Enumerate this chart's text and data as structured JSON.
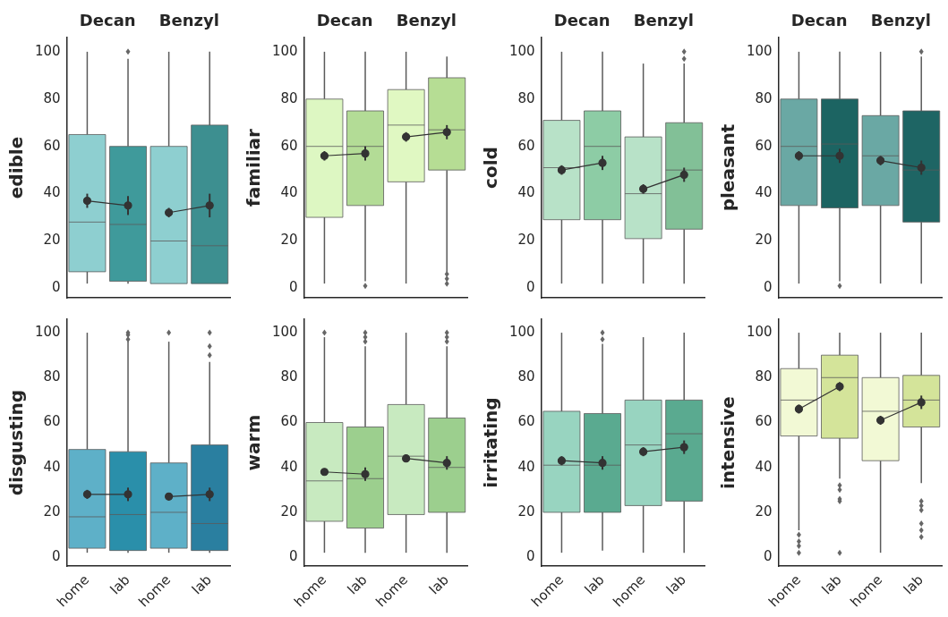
{
  "chart_data": [
    {
      "type": "box",
      "ylabel": "edible",
      "categories": [
        null,
        null,
        null,
        null
      ],
      "annotations": [
        "Decan",
        "Benzyl"
      ],
      "ylim": [
        -4,
        106
      ],
      "yticks": [
        0,
        20,
        40,
        60,
        80,
        100
      ],
      "tick_labels": "y",
      "series": [
        {
          "type": "box",
          "colors": [
            "#8ecfd0",
            "#3f9a9b",
            "#8ecfd0",
            "#3d8f90"
          ],
          "boxes": [
            {
              "low": 2,
              "q1": 7,
              "median": 28,
              "q3": 65,
              "high": 100
            },
            {
              "low": 2,
              "q1": 3,
              "median": 27,
              "q3": 60,
              "high": 97,
              "outliers": [
                100
              ]
            },
            {
              "low": 2,
              "q1": 2,
              "median": 20,
              "q3": 60,
              "high": 100
            },
            {
              "low": 2,
              "q1": 2,
              "median": 18,
              "q3": 69,
              "high": 100
            }
          ]
        },
        {
          "type": "line",
          "color": "#333333",
          "marker": "circle",
          "values": [
            37,
            35,
            null,
            null
          ],
          "errors": [
            3,
            4,
            null,
            null
          ]
        },
        {
          "type": "line",
          "color": "#333333",
          "marker": "circle",
          "values": [
            null,
            null,
            32,
            35
          ],
          "errors": [
            null,
            null,
            2,
            5
          ]
        }
      ]
    },
    {
      "type": "box",
      "ylabel": "familiar",
      "categories": [
        null,
        null,
        null,
        null
      ],
      "annotations": [
        "Decan",
        "Benzyl"
      ],
      "ylim": [
        -4,
        106
      ],
      "yticks": [
        0,
        20,
        40,
        60,
        80,
        100
      ],
      "tick_labels": "y",
      "series": [
        {
          "type": "box",
          "colors": [
            "#ddf7c2",
            "#b3dc96",
            "#e0f8c2",
            "#b6dd94"
          ],
          "boxes": [
            {
              "low": 2,
              "q1": 30,
              "median": 60,
              "q3": 80,
              "high": 100
            },
            {
              "low": 3,
              "q1": 35,
              "median": 60,
              "q3": 75,
              "high": 100,
              "outliers": [
                1
              ]
            },
            {
              "low": 2,
              "q1": 45,
              "median": 69,
              "q3": 84,
              "high": 100
            },
            {
              "low": 7,
              "q1": 50,
              "median": 67,
              "q3": 89,
              "high": 98,
              "outliers": [
                2,
                4,
                6
              ]
            }
          ]
        },
        {
          "type": "line",
          "color": "#333333",
          "marker": "circle",
          "values": [
            56,
            57,
            null,
            null
          ],
          "errors": [
            2,
            3,
            null,
            null
          ]
        },
        {
          "type": "line",
          "color": "#333333",
          "marker": "circle",
          "values": [
            null,
            null,
            64,
            66
          ],
          "errors": [
            null,
            null,
            2,
            3
          ]
        }
      ]
    },
    {
      "type": "box",
      "ylabel": "cold",
      "categories": [
        null,
        null,
        null,
        null
      ],
      "annotations": [
        "Decan",
        "Benzyl"
      ],
      "ylim": [
        -4,
        106
      ],
      "yticks": [
        0,
        20,
        40,
        60,
        80,
        100
      ],
      "tick_labels": "y",
      "series": [
        {
          "type": "box",
          "colors": [
            "#b8e2c8",
            "#8dcca5",
            "#b8e2c8",
            "#82c097"
          ],
          "boxes": [
            {
              "low": 2,
              "q1": 29,
              "median": 51,
              "q3": 71,
              "high": 100
            },
            {
              "low": 2,
              "q1": 29,
              "median": 60,
              "q3": 75,
              "high": 100
            },
            {
              "low": 2,
              "q1": 21,
              "median": 40,
              "q3": 64,
              "high": 95
            },
            {
              "low": 2,
              "q1": 25,
              "median": 50,
              "q3": 70,
              "high": 95,
              "outliers": [
                97,
                100
              ]
            }
          ]
        },
        {
          "type": "line",
          "color": "#333333",
          "marker": "circle",
          "values": [
            50,
            53,
            null,
            null
          ],
          "errors": [
            2,
            3,
            null,
            null
          ]
        },
        {
          "type": "line",
          "color": "#333333",
          "marker": "circle",
          "values": [
            null,
            null,
            42,
            48
          ],
          "errors": [
            null,
            null,
            2,
            3
          ]
        }
      ]
    },
    {
      "type": "box",
      "ylabel": "pleasant",
      "categories": [
        null,
        null,
        null,
        null
      ],
      "annotations": [
        "Decan",
        "Benzyl"
      ],
      "ylim": [
        -4,
        106
      ],
      "yticks": [
        0,
        20,
        40,
        60,
        80,
        100
      ],
      "tick_labels": "y",
      "series": [
        {
          "type": "box",
          "colors": [
            "#6aa8a4",
            "#1c6462",
            "#6aa8a4",
            "#1e6564"
          ],
          "boxes": [
            {
              "low": 2,
              "q1": 35,
              "median": 60,
              "q3": 80,
              "high": 100
            },
            {
              "low": 3,
              "q1": 34,
              "median": 61,
              "q3": 80,
              "high": 100,
              "outliers": [
                1
              ]
            },
            {
              "low": 2,
              "q1": 35,
              "median": 56,
              "q3": 73,
              "high": 100
            },
            {
              "low": 2,
              "q1": 28,
              "median": 50,
              "q3": 75,
              "high": 98,
              "outliers": [
                100
              ]
            }
          ]
        },
        {
          "type": "line",
          "color": "#333333",
          "marker": "circle",
          "values": [
            56,
            56,
            null,
            null
          ],
          "errors": [
            2,
            3,
            null,
            null
          ]
        },
        {
          "type": "line",
          "color": "#333333",
          "marker": "circle",
          "values": [
            null,
            null,
            54,
            51
          ],
          "errors": [
            null,
            null,
            2,
            3
          ]
        }
      ]
    },
    {
      "type": "box",
      "ylabel": "disgusting",
      "categories": [
        "home",
        "lab",
        "home",
        "lab"
      ],
      "ylim": [
        -4,
        106
      ],
      "yticks": [
        0,
        20,
        40,
        60,
        80,
        100
      ],
      "series": [
        {
          "type": "box",
          "colors": [
            "#5eb0c8",
            "#2a8faa",
            "#5eb0c8",
            "#2a7fa0"
          ],
          "boxes": [
            {
              "low": 2,
              "q1": 4,
              "median": 18,
              "q3": 48,
              "high": 100
            },
            {
              "low": 2,
              "q1": 3,
              "median": 19,
              "q3": 47,
              "high": 96,
              "outliers": [
                97,
                99,
                100
              ]
            },
            {
              "low": 2,
              "q1": 4,
              "median": 20,
              "q3": 42,
              "high": 96,
              "outliers": [
                100
              ]
            },
            {
              "low": 2,
              "q1": 3,
              "median": 15,
              "q3": 50,
              "high": 87,
              "outliers": [
                90,
                94,
                100
              ]
            }
          ]
        },
        {
          "type": "line",
          "color": "#333333",
          "marker": "circle",
          "values": [
            28,
            28,
            null,
            null
          ],
          "errors": [
            2,
            3,
            null,
            null
          ]
        },
        {
          "type": "line",
          "color": "#333333",
          "marker": "circle",
          "values": [
            null,
            null,
            27,
            28
          ],
          "errors": [
            null,
            null,
            1,
            3
          ]
        }
      ]
    },
    {
      "type": "box",
      "ylabel": "warm",
      "categories": [
        "home",
        "lab",
        "home",
        "lab"
      ],
      "ylim": [
        -4,
        106
      ],
      "yticks": [
        0,
        20,
        40,
        60,
        80,
        100
      ],
      "series": [
        {
          "type": "box",
          "colors": [
            "#c8eac0",
            "#9ccf8e",
            "#c8eac0",
            "#9ccf8e"
          ],
          "boxes": [
            {
              "low": 2,
              "q1": 16,
              "median": 34,
              "q3": 60,
              "high": 98,
              "outliers": [
                100
              ]
            },
            {
              "low": 2,
              "q1": 13,
              "median": 35,
              "q3": 58,
              "high": 94,
              "outliers": [
                96,
                98,
                100
              ]
            },
            {
              "low": 2,
              "q1": 19,
              "median": 45,
              "q3": 68,
              "high": 100
            },
            {
              "low": 2,
              "q1": 20,
              "median": 40,
              "q3": 62,
              "high": 94,
              "outliers": [
                96,
                98,
                100
              ]
            }
          ]
        },
        {
          "type": "line",
          "color": "#333333",
          "marker": "circle",
          "values": [
            38,
            37,
            null,
            null
          ],
          "errors": [
            1,
            3,
            null,
            null
          ]
        },
        {
          "type": "line",
          "color": "#333333",
          "marker": "circle",
          "values": [
            null,
            null,
            44,
            42
          ],
          "errors": [
            null,
            null,
            1,
            3
          ]
        }
      ]
    },
    {
      "type": "box",
      "ylabel": "irritating",
      "categories": [
        "home",
        "lab",
        "home",
        "lab"
      ],
      "ylim": [
        -4,
        106
      ],
      "yticks": [
        0,
        20,
        40,
        60,
        80,
        100
      ],
      "series": [
        {
          "type": "box",
          "colors": [
            "#98d4c0",
            "#5aaa90",
            "#98d4c0",
            "#5aaa90"
          ],
          "boxes": [
            {
              "low": 2,
              "q1": 20,
              "median": 41,
              "q3": 65,
              "high": 100
            },
            {
              "low": 3,
              "q1": 20,
              "median": 41,
              "q3": 64,
              "high": 95,
              "outliers": [
                97,
                100
              ]
            },
            {
              "low": 2,
              "q1": 23,
              "median": 50,
              "q3": 70,
              "high": 98
            },
            {
              "low": 2,
              "q1": 25,
              "median": 55,
              "q3": 70,
              "high": 100
            }
          ]
        },
        {
          "type": "line",
          "color": "#333333",
          "marker": "circle",
          "values": [
            43,
            42,
            null,
            null
          ],
          "errors": [
            2,
            3,
            null,
            null
          ]
        },
        {
          "type": "line",
          "color": "#333333",
          "marker": "circle",
          "values": [
            null,
            null,
            47,
            49
          ],
          "errors": [
            null,
            null,
            2,
            3
          ]
        }
      ]
    },
    {
      "type": "box",
      "ylabel": "intensive",
      "categories": [
        "home",
        "lab",
        "home",
        "lab"
      ],
      "ylim": [
        -4,
        106
      ],
      "yticks": [
        0,
        20,
        40,
        60,
        80,
        100
      ],
      "series": [
        {
          "type": "box",
          "colors": [
            "#f2f9d5",
            "#d4e49a",
            "#f2f9d5",
            "#d4e49a"
          ],
          "boxes": [
            {
              "low": 12,
              "q1": 54,
              "median": 70,
              "q3": 84,
              "high": 100,
              "outliers": [
                2,
                5,
                7,
                10
              ]
            },
            {
              "low": 35,
              "q1": 53,
              "median": 80,
              "q3": 90,
              "high": 100,
              "outliers": [
                2,
                25,
                26,
                30,
                32
              ]
            },
            {
              "low": 2,
              "q1": 43,
              "median": 65,
              "q3": 80,
              "high": 100
            },
            {
              "low": 33,
              "q1": 58,
              "median": 70,
              "q3": 81,
              "high": 100,
              "outliers": [
                9,
                12,
                15,
                21,
                23,
                25
              ]
            }
          ]
        },
        {
          "type": "line",
          "color": "#333333",
          "marker": "circle",
          "values": [
            66,
            76,
            null,
            null
          ],
          "errors": [
            2,
            2,
            null,
            null
          ]
        },
        {
          "type": "line",
          "color": "#333333",
          "marker": "circle",
          "values": [
            null,
            null,
            61,
            69
          ],
          "errors": [
            null,
            null,
            2,
            3
          ]
        }
      ]
    }
  ]
}
